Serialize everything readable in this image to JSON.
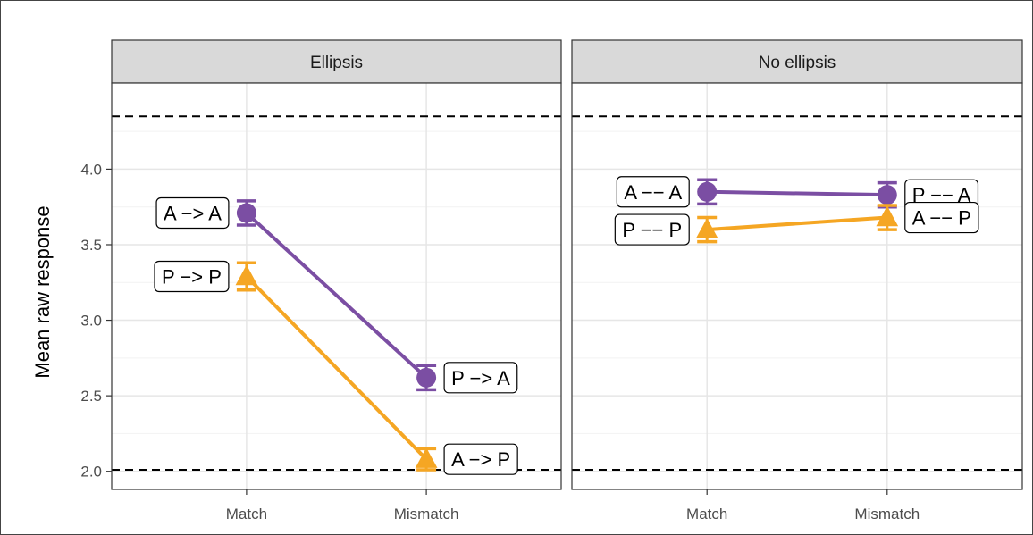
{
  "chart_data": {
    "type": "line",
    "ylabel": "Mean raw response",
    "xlabel": "",
    "ylim": [
      1.88,
      4.57
    ],
    "y_ticks": [
      2.0,
      2.5,
      3.0,
      3.5,
      4.0
    ],
    "y_tick_labels": [
      "2.0",
      "2.5",
      "3.0",
      "3.5",
      "4.0"
    ],
    "categories": [
      "Match",
      "Mismatch"
    ],
    "reference_lines": [
      2.01,
      4.35
    ],
    "grid": true,
    "legend": "none",
    "colors": {
      "purple": "#7b4ea3",
      "orange": "#f5a623"
    },
    "panels": [
      {
        "title": "Ellipsis",
        "series": [
          {
            "marker": "circle",
            "color": "#7b4ea3",
            "values": [
              3.71,
              2.62
            ],
            "err_low": [
              3.63,
              2.54
            ],
            "err_high": [
              3.79,
              2.7
            ],
            "point_labels": [
              "A −> A",
              "P −> A"
            ]
          },
          {
            "marker": "triangle",
            "color": "#f5a623",
            "values": [
              3.29,
              2.08
            ],
            "err_low": [
              3.2,
              2.01
            ],
            "err_high": [
              3.38,
              2.15
            ],
            "point_labels": [
              "P −> P",
              "A −> P"
            ]
          }
        ]
      },
      {
        "title": "No ellipsis",
        "series": [
          {
            "marker": "circle",
            "color": "#7b4ea3",
            "values": [
              3.85,
              3.83
            ],
            "err_low": [
              3.77,
              3.75
            ],
            "err_high": [
              3.93,
              3.91
            ],
            "point_labels": [
              "A −− A",
              "P −− A"
            ]
          },
          {
            "marker": "triangle",
            "color": "#f5a623",
            "values": [
              3.6,
              3.68
            ],
            "err_low": [
              3.52,
              3.6
            ],
            "err_high": [
              3.68,
              3.76
            ],
            "point_labels": [
              "P −− P",
              "A −− P"
            ]
          }
        ]
      }
    ]
  }
}
